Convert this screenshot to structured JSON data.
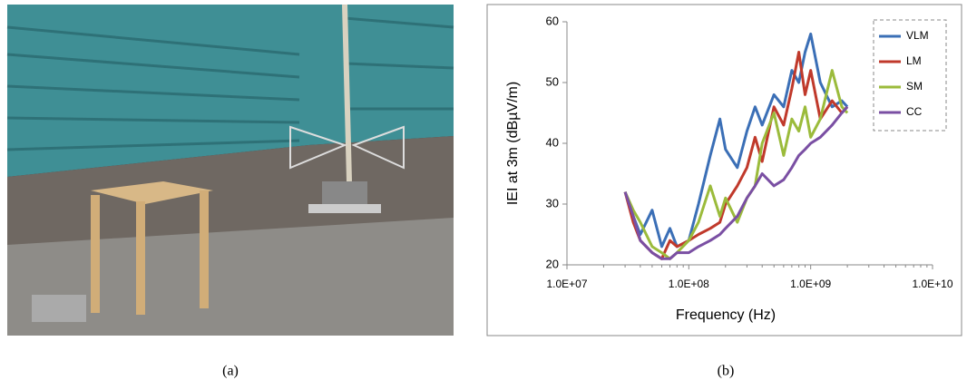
{
  "chart_data": {
    "type": "line",
    "xscale": "log",
    "ylabel": "IEI at 3m (dBµV/m)",
    "xlabel": "Frequency (Hz)",
    "x": [
      30000000.0,
      35000000.0,
      40000000.0,
      50000000.0,
      60000000.0,
      70000000.0,
      80000000.0,
      100000000.0,
      120000000.0,
      150000000.0,
      180000000.0,
      200000000.0,
      250000000.0,
      300000000.0,
      350000000.0,
      400000000.0,
      500000000.0,
      600000000.0,
      700000000.0,
      800000000.0,
      900000000.0,
      1000000000.0,
      1200000000.0,
      1500000000.0,
      1800000000.0,
      2000000000.0
    ],
    "series": [
      {
        "name": "VLM",
        "color": "#3b6fb6",
        "values": [
          32,
          28,
          25,
          29,
          23,
          26,
          23,
          24,
          30,
          38,
          44,
          39,
          36,
          42,
          46,
          43,
          48,
          46,
          52,
          50,
          55,
          58,
          50,
          46,
          47,
          46
        ]
      },
      {
        "name": "LM",
        "color": "#c0392b",
        "values": [
          32,
          27,
          24,
          22,
          21,
          24,
          23,
          24,
          25,
          26,
          27,
          30,
          33,
          36,
          41,
          37,
          46,
          43,
          49,
          55,
          48,
          52,
          44,
          47,
          45,
          46
        ]
      },
      {
        "name": "SM",
        "color": "#9bbb3b",
        "values": [
          32,
          29,
          27,
          23,
          22,
          21,
          22,
          24,
          27,
          33,
          28,
          31,
          27,
          31,
          33,
          40,
          45,
          38,
          44,
          42,
          46,
          41,
          44,
          52,
          46,
          45
        ]
      },
      {
        "name": "CC",
        "color": "#7a4fa3",
        "values": [
          32,
          28,
          24,
          22,
          21,
          21,
          22,
          22,
          23,
          24,
          25,
          26,
          28,
          31,
          33,
          35,
          33,
          34,
          36,
          38,
          39,
          40,
          41,
          43,
          45,
          46
        ]
      }
    ],
    "xlim": [
      10000000.0,
      10000000000.0
    ],
    "xticks": [
      {
        "value": 10000000.0,
        "label": "1.0E+07"
      },
      {
        "value": 100000000.0,
        "label": "1.0E+08"
      },
      {
        "value": 1000000000.0,
        "label": "1.0E+09"
      },
      {
        "value": 10000000000.0,
        "label": "1.0E+10"
      }
    ],
    "ylim": [
      20,
      60
    ],
    "yticks": [
      20,
      30,
      40,
      50,
      60
    ],
    "legend": "right"
  },
  "captions": [
    "(a)",
    "(b)"
  ]
}
